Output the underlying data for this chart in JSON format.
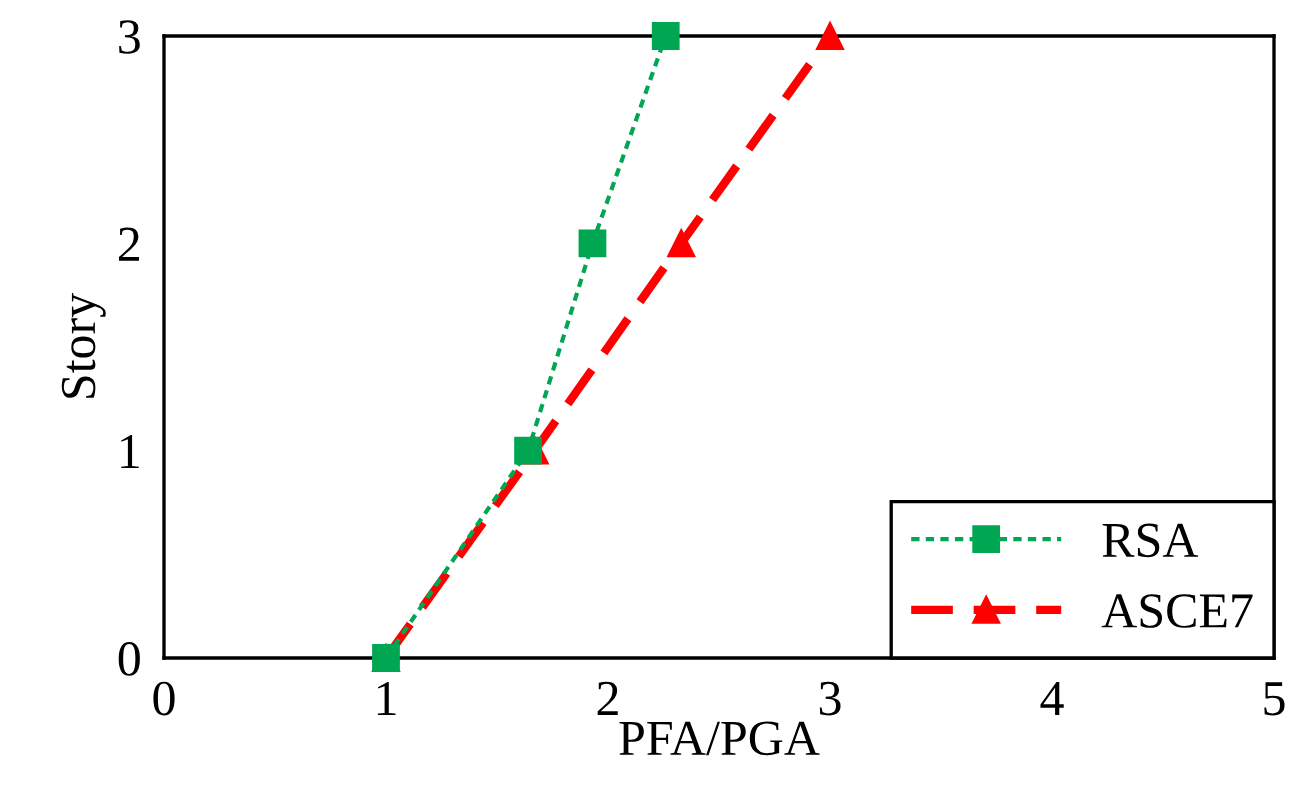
{
  "chart_data": {
    "type": "line",
    "xlabel": "PFA/PGA",
    "ylabel": "Story",
    "xlim": [
      0,
      5
    ],
    "xticks": [
      0,
      1,
      2,
      3,
      4,
      5
    ],
    "ylim": [
      0,
      3
    ],
    "yticks": [
      0,
      1,
      2,
      3
    ],
    "grid": false,
    "legend": "bottom right",
    "series": [
      {
        "name": "RSA",
        "color": "#00a651",
        "x": [
          1.0,
          1.64,
          1.93,
          2.26
        ],
        "values": [
          0,
          1,
          2,
          3
        ],
        "marker": "square",
        "line_style": "dotted"
      },
      {
        "name": "ASCE7",
        "color": "#ff0000",
        "x": [
          1.0,
          1.67,
          2.33,
          3.0
        ],
        "values": [
          0,
          1,
          2,
          3
        ],
        "marker": "triangle",
        "line_style": "dashed"
      }
    ]
  }
}
